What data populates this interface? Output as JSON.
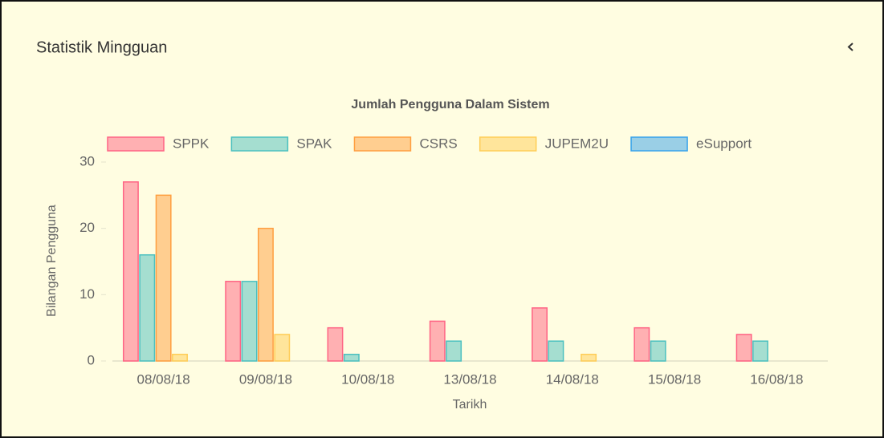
{
  "panel_title": "Statistik Mingguan",
  "chart_data": {
    "type": "bar",
    "title": "Jumlah Pengguna Dalam Sistem",
    "x_label": "Tarikh",
    "y_label": "Bilangan Pengguna",
    "categories": [
      "08/08/18",
      "09/08/18",
      "10/08/18",
      "13/08/18",
      "14/08/18",
      "15/08/18",
      "16/08/18"
    ],
    "series": [
      {
        "name": "SPPK",
        "color": "#ff6384",
        "values": [
          27,
          12,
          5,
          6,
          8,
          5,
          4
        ]
      },
      {
        "name": "SPAK",
        "color": "#4bc0c0",
        "values": [
          16,
          12,
          1,
          3,
          3,
          3,
          3
        ]
      },
      {
        "name": "CSRS",
        "color": "#ff9f40",
        "values": [
          25,
          20,
          0,
          0,
          0,
          0,
          0
        ]
      },
      {
        "name": "JUPEM2U",
        "color": "#ffcd56",
        "values": [
          1,
          4,
          0,
          0,
          1,
          0,
          0
        ]
      },
      {
        "name": "eSupport",
        "color": "#36a2eb",
        "values": [
          0,
          0,
          0,
          0,
          0,
          0,
          0
        ]
      }
    ],
    "ylim": [
      0,
      30
    ],
    "yticks": [
      0,
      10,
      20,
      30
    ],
    "grid": false,
    "legend": "top"
  }
}
